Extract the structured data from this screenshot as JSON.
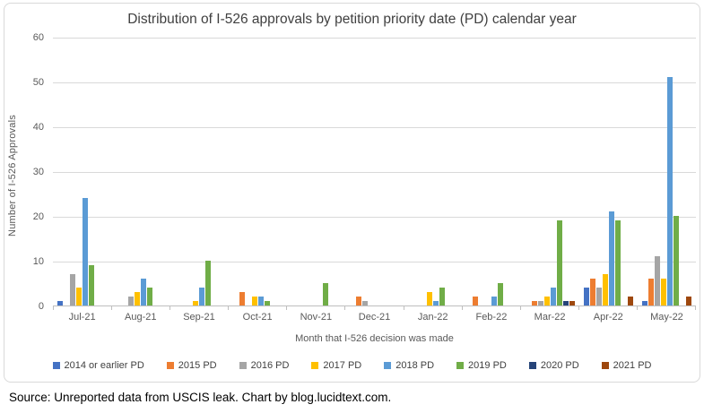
{
  "source_note": "Source: Unreported data from USCIS leak. Chart by blog.lucidtext.com.",
  "chart_data": {
    "type": "bar",
    "title": "Distribution of I-526 approvals by petition priority date (PD) calendar year",
    "xlabel": "Month that I-526 decision was made",
    "ylabel": "Number of I-526 Approvals",
    "ylim": [
      0,
      60
    ],
    "yticks": [
      0,
      10,
      20,
      30,
      40,
      50,
      60
    ],
    "grid": true,
    "legend_position": "bottom",
    "categories": [
      "Jul-21",
      "Aug-21",
      "Sep-21",
      "Oct-21",
      "Nov-21",
      "Dec-21",
      "Jan-22",
      "Feb-22",
      "Mar-22",
      "Apr-22",
      "May-22"
    ],
    "series": [
      {
        "name": "2014 or earlier PD",
        "color": "#4472C4",
        "values": [
          1,
          0,
          0,
          0,
          0,
          0,
          0,
          0,
          0,
          4,
          1
        ]
      },
      {
        "name": "2015 PD",
        "color": "#ED7D31",
        "values": [
          0,
          0,
          0,
          3,
          0,
          2,
          0,
          2,
          1,
          6,
          6
        ]
      },
      {
        "name": "2016 PD",
        "color": "#A5A5A5",
        "values": [
          7,
          2,
          0,
          0,
          0,
          1,
          0,
          0,
          1,
          4,
          11
        ]
      },
      {
        "name": "2017 PD",
        "color": "#FFC000",
        "values": [
          4,
          3,
          1,
          2,
          0,
          0,
          3,
          0,
          2,
          7,
          6
        ]
      },
      {
        "name": "2018 PD",
        "color": "#5B9BD5",
        "values": [
          24,
          6,
          4,
          2,
          0,
          0,
          1,
          2,
          4,
          21,
          51
        ]
      },
      {
        "name": "2019 PD",
        "color": "#70AD47",
        "values": [
          9,
          4,
          10,
          1,
          5,
          0,
          4,
          5,
          19,
          19,
          20
        ]
      },
      {
        "name": "2020 PD",
        "color": "#264478",
        "values": [
          0,
          0,
          0,
          0,
          0,
          0,
          0,
          0,
          1,
          0,
          0
        ]
      },
      {
        "name": "2021 PD",
        "color": "#9E480E",
        "values": [
          0,
          0,
          0,
          0,
          0,
          0,
          0,
          0,
          1,
          2,
          2
        ]
      }
    ],
    "colors": {
      "title_text": "#404040",
      "axis_text": "#595959",
      "gridline": "#D9D9D9",
      "axis_line": "#BFBFBF",
      "card_border": "#D9D9D9",
      "background": "#FFFFFF"
    }
  }
}
